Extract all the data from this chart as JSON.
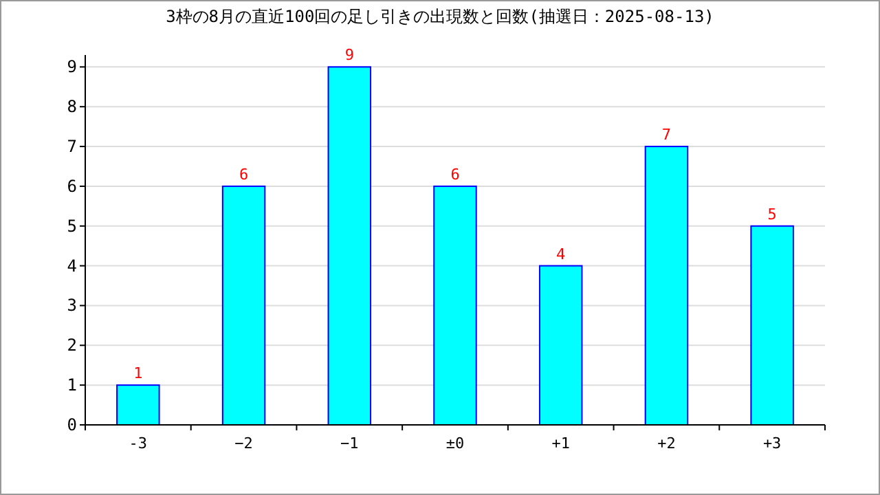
{
  "chart_data": {
    "type": "bar",
    "title": "3枠の8月の直近100回の足し引きの出現数と回数(抽選日：2025-08-13)",
    "categories": [
      "-3",
      "−2",
      "−1",
      "±0",
      "+1",
      "+2",
      "+3"
    ],
    "values": [
      1,
      6,
      9,
      6,
      4,
      7,
      5
    ],
    "color": "#00ffff",
    "ylim": [
      0,
      9.3
    ],
    "yticks": [
      0,
      1,
      2,
      3,
      4,
      5,
      6,
      7,
      8,
      9
    ],
    "grid": "y",
    "data_labels": true
  }
}
